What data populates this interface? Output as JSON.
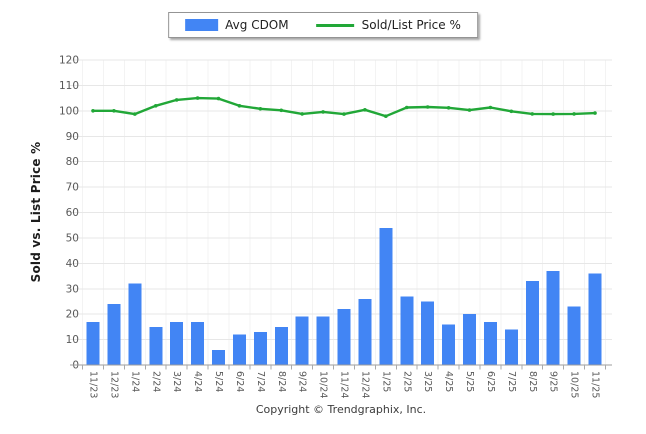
{
  "legend": {
    "items": [
      {
        "label": "Avg CDOM",
        "type": "bar",
        "color": "#4285f4"
      },
      {
        "label": "Sold/List Price %",
        "type": "line",
        "color": "#21a737"
      }
    ]
  },
  "chart_data": {
    "type": "combo",
    "categories": [
      "11/23",
      "12/23",
      "1/24",
      "2/24",
      "3/24",
      "4/24",
      "5/24",
      "6/24",
      "7/24",
      "8/24",
      "9/24",
      "10/24",
      "11/24",
      "12/24",
      "1/25",
      "2/25",
      "3/25",
      "4/25",
      "5/25",
      "6/25",
      "7/25",
      "8/25",
      "9/25",
      "10/25",
      "11/25"
    ],
    "series": [
      {
        "name": "Avg CDOM",
        "type": "bar",
        "color": "#4285f4",
        "values": [
          17,
          24,
          32,
          15,
          17,
          17,
          6,
          12,
          13,
          15,
          19,
          19,
          22,
          26,
          54,
          27,
          25,
          16,
          20,
          17,
          14,
          33,
          37,
          23,
          36
        ]
      },
      {
        "name": "Sold/List Price %",
        "type": "line",
        "color": "#21a737",
        "values": [
          100.0,
          100.0,
          98.7,
          102.0,
          104.3,
          105.0,
          104.8,
          102.0,
          100.8,
          100.2,
          98.8,
          99.6,
          98.7,
          100.4,
          97.9,
          101.3,
          101.5,
          101.2,
          100.3,
          101.3,
          99.8,
          98.8,
          98.7,
          98.8,
          99.1
        ]
      }
    ],
    "title": "",
    "xlabel": "",
    "ylabel": "Sold vs. List Price %",
    "ylim": [
      0,
      120
    ],
    "ytick_step": 10,
    "grid": true,
    "legend_position": "top"
  },
  "footer": {
    "copyright": "Copyright © Trendgraphix, Inc."
  }
}
